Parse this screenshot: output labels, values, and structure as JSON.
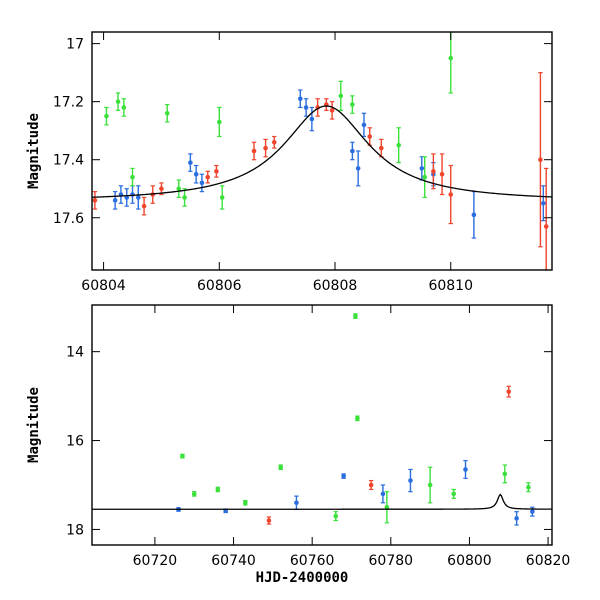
{
  "chart_data": [
    {
      "type": "scatter",
      "panel": "top",
      "title": "",
      "xlabel": "",
      "ylabel": "Magnitude",
      "xlim": [
        60803.8,
        60811.75
      ],
      "ylim": [
        17.78,
        16.96
      ],
      "y_inverted": true,
      "xticks": [
        60804,
        60806,
        60808,
        60810
      ],
      "yticks": [
        17,
        17.2,
        17.4,
        17.6
      ],
      "ytick_labels": [
        "17",
        "17.2",
        "17.4",
        "17.6"
      ],
      "grid": false,
      "legend": "none",
      "model_curve": {
        "t0": 60807.85,
        "base": 17.545,
        "amp": 0.33,
        "width": 0.9,
        "color": "#000000"
      },
      "series": [
        {
          "color": "#2a6ee0",
          "points": [
            [
              60804.2,
              17.54,
              0.03
            ],
            [
              60804.3,
              17.52,
              0.03
            ],
            [
              60804.4,
              17.53,
              0.03
            ],
            [
              60804.5,
              17.52,
              0.03
            ],
            [
              60804.6,
              17.53,
              0.04
            ],
            [
              60805.5,
              17.41,
              0.03
            ],
            [
              60805.6,
              17.45,
              0.03
            ],
            [
              60805.7,
              17.48,
              0.03
            ],
            [
              60807.4,
              17.19,
              0.03
            ],
            [
              60807.5,
              17.22,
              0.03
            ],
            [
              60807.6,
              17.26,
              0.04
            ],
            [
              60808.3,
              17.37,
              0.03
            ],
            [
              60808.4,
              17.43,
              0.06
            ],
            [
              60808.5,
              17.28,
              0.04
            ],
            [
              60809.5,
              17.43,
              0.04
            ],
            [
              60809.7,
              17.45,
              0.04
            ],
            [
              60810.4,
              17.59,
              0.08
            ],
            [
              60811.6,
              17.55,
              0.06
            ]
          ]
        },
        {
          "color": "#3be03b",
          "points": [
            [
              60804.05,
              17.25,
              0.03
            ],
            [
              60804.25,
              17.2,
              0.03
            ],
            [
              60804.35,
              17.22,
              0.03
            ],
            [
              60804.5,
              17.46,
              0.03
            ],
            [
              60805.1,
              17.24,
              0.03
            ],
            [
              60805.3,
              17.5,
              0.03
            ],
            [
              60805.4,
              17.53,
              0.03
            ],
            [
              60806.0,
              17.27,
              0.05
            ],
            [
              60806.05,
              17.53,
              0.04
            ],
            [
              60808.1,
              17.18,
              0.05
            ],
            [
              60808.3,
              17.21,
              0.03
            ],
            [
              60809.1,
              17.35,
              0.06
            ],
            [
              60809.55,
              17.46,
              0.07
            ],
            [
              60810.0,
              17.05,
              0.12
            ]
          ]
        },
        {
          "color": "#f0452d",
          "points": [
            [
              60803.85,
              17.54,
              0.03
            ],
            [
              60804.7,
              17.56,
              0.03
            ],
            [
              60804.85,
              17.52,
              0.03
            ],
            [
              60805.0,
              17.5,
              0.02
            ],
            [
              60805.8,
              17.46,
              0.02
            ],
            [
              60805.95,
              17.44,
              0.02
            ],
            [
              60806.6,
              17.37,
              0.03
            ],
            [
              60806.8,
              17.36,
              0.03
            ],
            [
              60806.95,
              17.34,
              0.02
            ],
            [
              60807.7,
              17.22,
              0.03
            ],
            [
              60807.85,
              17.21,
              0.02
            ],
            [
              60807.95,
              17.23,
              0.03
            ],
            [
              60808.6,
              17.32,
              0.03
            ],
            [
              60808.8,
              17.36,
              0.03
            ],
            [
              60809.7,
              17.44,
              0.06
            ],
            [
              60809.85,
              17.45,
              0.07
            ],
            [
              60810.0,
              17.52,
              0.1
            ],
            [
              60811.55,
              17.4,
              0.3
            ],
            [
              60811.65,
              17.63,
              0.2
            ]
          ]
        }
      ]
    },
    {
      "type": "scatter",
      "panel": "bottom",
      "title": "",
      "xlabel": "HJD-2400000",
      "ylabel": "Magnitude",
      "xlim": [
        60704,
        60821
      ],
      "ylim": [
        18.35,
        12.95
      ],
      "y_inverted": true,
      "xticks": [
        60720,
        60740,
        60760,
        60780,
        60800,
        60820
      ],
      "yticks": [
        14,
        16,
        18
      ],
      "ytick_labels": [
        "14",
        "16",
        "18"
      ],
      "grid": false,
      "legend": "none",
      "model_curve": {
        "t0": 60807.85,
        "base": 17.545,
        "amp": 0.33,
        "width": 0.9,
        "color": "#000000"
      },
      "series": [
        {
          "color": "#2a6ee0",
          "points": [
            [
              60726,
              17.55,
              0.04
            ],
            [
              60738,
              17.58,
              0.04
            ],
            [
              60756,
              17.4,
              0.15
            ],
            [
              60768,
              16.8,
              0.05
            ],
            [
              60778,
              17.2,
              0.2
            ],
            [
              60785,
              16.9,
              0.25
            ],
            [
              60799,
              16.65,
              0.2
            ],
            [
              60812,
              17.75,
              0.15
            ],
            [
              60816,
              17.6,
              0.1
            ]
          ]
        },
        {
          "color": "#3be03b",
          "points": [
            [
              60727,
              16.35,
              0.04
            ],
            [
              60730,
              17.2,
              0.05
            ],
            [
              60736,
              17.1,
              0.05
            ],
            [
              60743,
              17.4,
              0.05
            ],
            [
              60752,
              16.6,
              0.05
            ],
            [
              60766,
              17.7,
              0.1
            ],
            [
              60771,
              13.2,
              0.05
            ],
            [
              60771.5,
              15.5,
              0.05
            ],
            [
              60779,
              17.5,
              0.35
            ],
            [
              60790,
              17.0,
              0.4
            ],
            [
              60796,
              17.2,
              0.1
            ],
            [
              60809,
              16.75,
              0.2
            ],
            [
              60815,
              17.05,
              0.1
            ]
          ]
        },
        {
          "color": "#f0452d",
          "points": [
            [
              60775,
              17.0,
              0.1
            ],
            [
              60810,
              14.9,
              0.12
            ],
            [
              60749,
              17.8,
              0.08
            ]
          ]
        }
      ]
    }
  ]
}
